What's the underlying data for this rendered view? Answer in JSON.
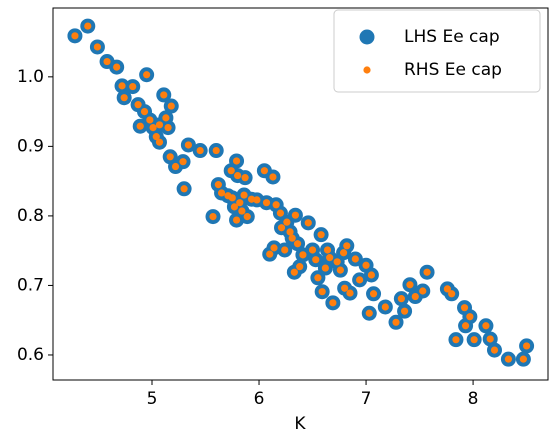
{
  "chart_data": {
    "type": "scatter",
    "xlabel": "K",
    "x": [
      4.28,
      4.4,
      4.49,
      4.58,
      4.67,
      4.72,
      4.74,
      4.82,
      4.87,
      4.89,
      4.95,
      4.93,
      4.98,
      5.01,
      5.04,
      5.07,
      5.07,
      5.11,
      5.13,
      5.15,
      5.18,
      5.17,
      5.22,
      5.29,
      5.3,
      5.34,
      5.45,
      5.6,
      5.57,
      5.62,
      5.65,
      5.71,
      5.74,
      5.79,
      5.8,
      5.75,
      5.77,
      5.79,
      5.82,
      5.84,
      5.87,
      5.86,
      5.89,
      5.93,
      5.98,
      6.05,
      6.13,
      6.07,
      6.1,
      6.14,
      6.16,
      6.2,
      6.21,
      6.24,
      6.26,
      6.29,
      6.31,
      6.34,
      6.33,
      6.36,
      6.38,
      6.41,
      6.46,
      6.5,
      6.53,
      6.55,
      6.58,
      6.59,
      6.62,
      6.64,
      6.66,
      6.69,
      6.73,
      6.76,
      6.79,
      6.8,
      6.82,
      6.85,
      6.9,
      6.94,
      7.0,
      7.03,
      7.05,
      7.07,
      7.18,
      7.28,
      7.33,
      7.36,
      7.41,
      7.46,
      7.53,
      7.57,
      7.76,
      7.8,
      7.84,
      7.92,
      7.93,
      7.97,
      8.01,
      8.12,
      8.16,
      8.2,
      8.33,
      8.47,
      8.5
    ],
    "series": [
      {
        "name": "LHS Ee cap",
        "color": "#1f77b4",
        "values": [
          1.059,
          1.073,
          1.043,
          1.022,
          1.014,
          0.987,
          0.97,
          0.986,
          0.96,
          0.929,
          1.003,
          0.95,
          0.938,
          0.927,
          0.914,
          0.906,
          0.931,
          0.974,
          0.941,
          0.927,
          0.958,
          0.885,
          0.871,
          0.878,
          0.839,
          0.902,
          0.894,
          0.894,
          0.799,
          0.845,
          0.833,
          0.829,
          0.865,
          0.879,
          0.858,
          0.826,
          0.813,
          0.794,
          0.819,
          0.807,
          0.855,
          0.83,
          0.799,
          0.824,
          0.823,
          0.865,
          0.856,
          0.819,
          0.745,
          0.754,
          0.816,
          0.804,
          0.783,
          0.751,
          0.791,
          0.777,
          0.768,
          0.801,
          0.719,
          0.76,
          0.727,
          0.744,
          0.79,
          0.751,
          0.737,
          0.711,
          0.773,
          0.691,
          0.725,
          0.751,
          0.74,
          0.675,
          0.734,
          0.722,
          0.747,
          0.696,
          0.757,
          0.689,
          0.738,
          0.708,
          0.729,
          0.66,
          0.715,
          0.688,
          0.669,
          0.647,
          0.681,
          0.663,
          0.701,
          0.684,
          0.692,
          0.719,
          0.695,
          0.688,
          0.622,
          0.668,
          0.642,
          0.655,
          0.622,
          0.642,
          0.623,
          0.607,
          0.594,
          0.594,
          0.613
        ]
      },
      {
        "name": "RHS Ee cap",
        "color": "#ff7f0e",
        "values": [
          1.059,
          1.073,
          1.043,
          1.022,
          1.014,
          0.987,
          0.97,
          0.986,
          0.96,
          0.929,
          1.003,
          0.95,
          0.938,
          0.927,
          0.914,
          0.906,
          0.931,
          0.974,
          0.941,
          0.927,
          0.958,
          0.885,
          0.871,
          0.878,
          0.839,
          0.902,
          0.894,
          0.894,
          0.799,
          0.845,
          0.833,
          0.829,
          0.865,
          0.879,
          0.858,
          0.826,
          0.813,
          0.794,
          0.819,
          0.807,
          0.855,
          0.83,
          0.799,
          0.824,
          0.823,
          0.865,
          0.856,
          0.819,
          0.745,
          0.754,
          0.816,
          0.804,
          0.783,
          0.751,
          0.791,
          0.777,
          0.768,
          0.801,
          0.719,
          0.76,
          0.727,
          0.744,
          0.79,
          0.751,
          0.737,
          0.711,
          0.773,
          0.691,
          0.725,
          0.751,
          0.74,
          0.675,
          0.734,
          0.722,
          0.747,
          0.696,
          0.757,
          0.689,
          0.738,
          0.708,
          0.729,
          0.66,
          0.715,
          0.688,
          0.669,
          0.647,
          0.681,
          0.663,
          0.701,
          0.684,
          0.692,
          0.719,
          0.695,
          0.688,
          0.622,
          0.668,
          0.642,
          0.655,
          0.622,
          0.642,
          0.623,
          0.607,
          0.594,
          0.594,
          0.613
        ]
      }
    ],
    "xlim": [
      4.075,
      8.7
    ],
    "xticks": [
      5,
      6,
      7,
      8
    ],
    "ylim": [
      0.564,
      1.099
    ],
    "yticks": [
      0.6,
      0.7,
      0.8,
      0.9,
      {
        "value": 1,
        "label": "1.0"
      }
    ],
    "grid": false,
    "legend": "upper right"
  }
}
